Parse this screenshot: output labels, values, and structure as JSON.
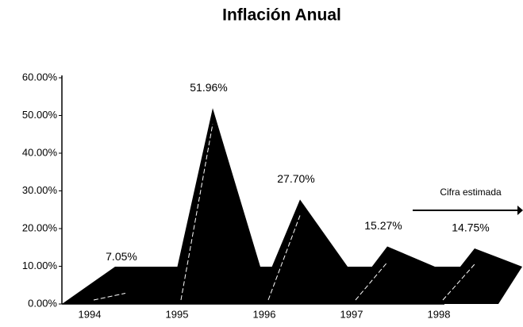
{
  "chart_data": {
    "type": "area3d",
    "title": "Inflación Anual",
    "categories": [
      "1994",
      "1995",
      "1996",
      "1997",
      "1998"
    ],
    "values": [
      7.05,
      51.96,
      27.7,
      15.27,
      14.75
    ],
    "value_labels": [
      "7.05%",
      "51.96%",
      "27.70%",
      "15.27%",
      "14.75%"
    ],
    "color": "#000000",
    "ylim": [
      0,
      60
    ],
    "yticks": [
      {
        "value": 0,
        "label": "0.00%"
      },
      {
        "value": 10,
        "label": "10.00%"
      },
      {
        "value": 20,
        "label": "20.00%"
      },
      {
        "value": 30,
        "label": "30.00%"
      },
      {
        "value": 40,
        "label": "40.00%"
      },
      {
        "value": 50,
        "label": "50.00%"
      },
      {
        "value": 60,
        "label": "60.00%"
      }
    ],
    "annotation": "Cifra estimada"
  }
}
